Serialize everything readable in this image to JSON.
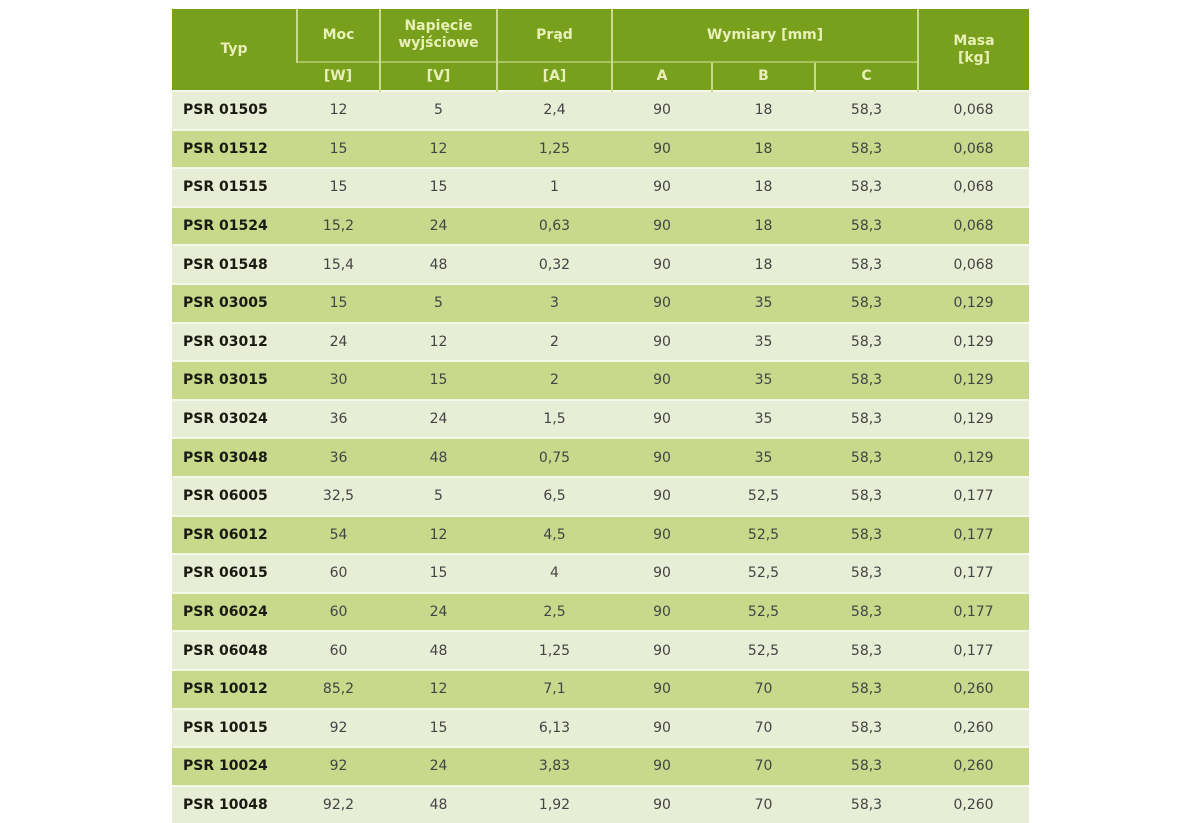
{
  "header": {
    "typ": "Typ",
    "moc": "Moc",
    "moc_unit": "[W]",
    "napiecie": "Napięcie wyjściowe",
    "napiecie_unit": "[V]",
    "prad": "Prąd",
    "prad_unit": "[A]",
    "wymiary": "Wymiary [mm]",
    "a": "A",
    "b": "B",
    "c": "C",
    "masa": "Masa [kg]"
  },
  "rows": [
    [
      "PSR 01505",
      "12",
      "5",
      "2,4",
      "90",
      "18",
      "58,3",
      "0,068"
    ],
    [
      "PSR 01512",
      "15",
      "12",
      "1,25",
      "90",
      "18",
      "58,3",
      "0,068"
    ],
    [
      "PSR 01515",
      "15",
      "15",
      "1",
      "90",
      "18",
      "58,3",
      "0,068"
    ],
    [
      "PSR 01524",
      "15,2",
      "24",
      "0,63",
      "90",
      "18",
      "58,3",
      "0,068"
    ],
    [
      "PSR 01548",
      "15,4",
      "48",
      "0,32",
      "90",
      "18",
      "58,3",
      "0,068"
    ],
    [
      "PSR 03005",
      "15",
      "5",
      "3",
      "90",
      "35",
      "58,3",
      "0,129"
    ],
    [
      "PSR 03012",
      "24",
      "12",
      "2",
      "90",
      "35",
      "58,3",
      "0,129"
    ],
    [
      "PSR 03015",
      "30",
      "15",
      "2",
      "90",
      "35",
      "58,3",
      "0,129"
    ],
    [
      "PSR 03024",
      "36",
      "24",
      "1,5",
      "90",
      "35",
      "58,3",
      "0,129"
    ],
    [
      "PSR 03048",
      "36",
      "48",
      "0,75",
      "90",
      "35",
      "58,3",
      "0,129"
    ],
    [
      "PSR 06005",
      "32,5",
      "5",
      "6,5",
      "90",
      "52,5",
      "58,3",
      "0,177"
    ],
    [
      "PSR 06012",
      "54",
      "12",
      "4,5",
      "90",
      "52,5",
      "58,3",
      "0,177"
    ],
    [
      "PSR 06015",
      "60",
      "15",
      "4",
      "90",
      "52,5",
      "58,3",
      "0,177"
    ],
    [
      "PSR 06024",
      "60",
      "24",
      "2,5",
      "90",
      "52,5",
      "58,3",
      "0,177"
    ],
    [
      "PSR 06048",
      "60",
      "48",
      "1,25",
      "90",
      "52,5",
      "58,3",
      "0,177"
    ],
    [
      "PSR 10012",
      "85,2",
      "12",
      "7,1",
      "90",
      "70",
      "58,3",
      "0,260"
    ],
    [
      "PSR 10015",
      "92",
      "15",
      "6,13",
      "90",
      "70",
      "58,3",
      "0,260"
    ],
    [
      "PSR 10024",
      "92",
      "24",
      "3,83",
      "90",
      "70",
      "58,3",
      "0,260"
    ],
    [
      "PSR 10048",
      "92,2",
      "48",
      "1,92",
      "90",
      "70",
      "58,3",
      "0,260"
    ]
  ]
}
